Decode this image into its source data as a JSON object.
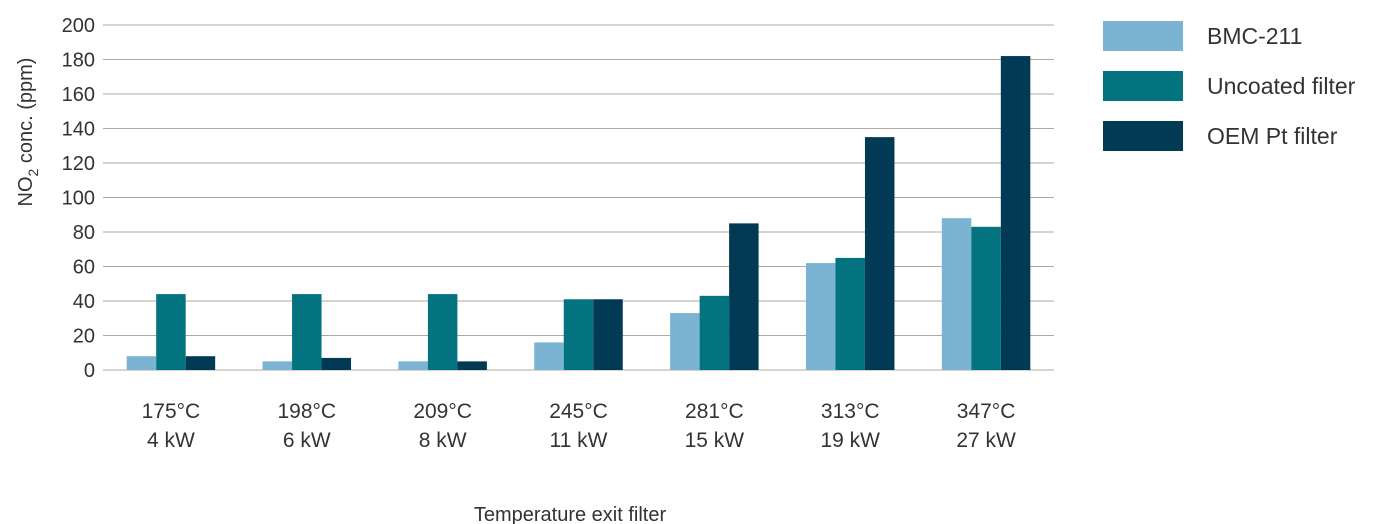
{
  "chart_data": {
    "type": "bar",
    "categories": [
      [
        "175°C",
        "4 kW"
      ],
      [
        "198°C",
        "6 kW"
      ],
      [
        "209°C",
        "8 kW"
      ],
      [
        "245°C",
        "11 kW"
      ],
      [
        "281°C",
        "15 kW"
      ],
      [
        "313°C",
        "19 kW"
      ],
      [
        "347°C",
        "27 kW"
      ]
    ],
    "series": [
      {
        "name": "BMC-211",
        "color": "#7bb4d2",
        "values": [
          8,
          5,
          5,
          16,
          33,
          62,
          88
        ]
      },
      {
        "name": "Uncoated filter",
        "color": "#03747f",
        "values": [
          44,
          44,
          44,
          41,
          43,
          65,
          83
        ]
      },
      {
        "name": "OEM Pt filter",
        "color": "#023a55",
        "values": [
          8,
          7,
          5,
          41,
          85,
          135,
          182
        ]
      }
    ],
    "ylabel": {
      "main": "NO",
      "sub": "2",
      "rest": " conc. (ppm)"
    },
    "xlabel": "Temperature exit filter",
    "ylim": [
      0,
      200
    ],
    "yticks": [
      0,
      20,
      40,
      60,
      80,
      100,
      120,
      140,
      160,
      180,
      200
    ],
    "grid": true,
    "grid_color": "#b3a79a",
    "legend_position": "right"
  }
}
